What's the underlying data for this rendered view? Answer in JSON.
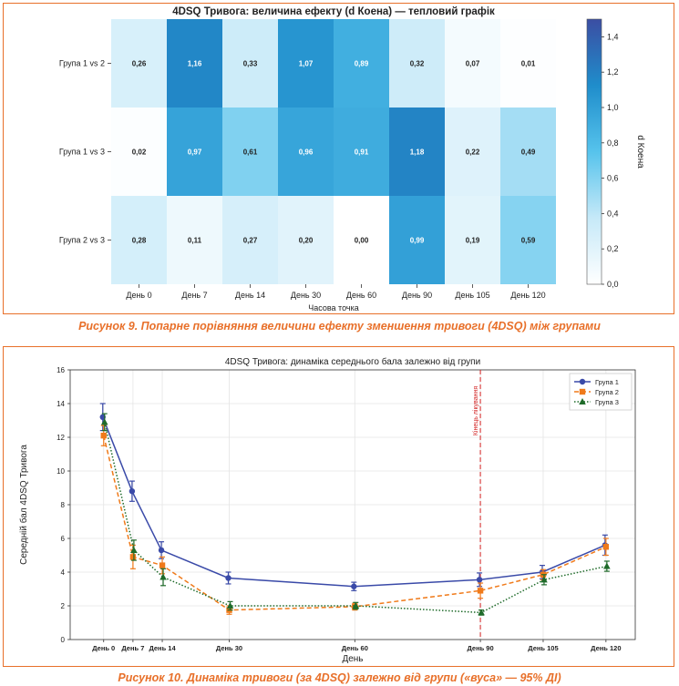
{
  "figure9": {
    "caption": "Рисунок 9. Попарне порівняння величини ефекту зменшення тривоги (4DSQ) між групами",
    "chart_data": {
      "type": "heatmap",
      "title": "4DSQ Тривога: величина ефекту (d Коена) — тепловий графік",
      "xlabel": "Часова точка",
      "ylabel": "",
      "colorbar_label": "d Коена",
      "colorbar_range": [
        0,
        1.5
      ],
      "colorbar_ticks": [
        "0,0",
        "0,2",
        "0,4",
        "0,6",
        "0,8",
        "1,0",
        "1,2",
        "1,4"
      ],
      "colormap": [
        "#ffffff",
        "#c6e9f8",
        "#56c3ec",
        "#1f8dcb",
        "#3b4ea3"
      ],
      "x_categories": [
        "День 0",
        "День 7",
        "День 14",
        "День 30",
        "День 60",
        "День 90",
        "День 105",
        "День 120"
      ],
      "y_categories": [
        "Група 1 vs 2",
        "Група 1 vs 3",
        "Група 2 vs 3"
      ],
      "values": [
        [
          0.26,
          1.16,
          0.33,
          1.07,
          0.89,
          0.32,
          0.07,
          0.01
        ],
        [
          0.02,
          0.97,
          0.61,
          0.96,
          0.91,
          1.18,
          0.22,
          0.49
        ],
        [
          0.28,
          0.11,
          0.27,
          0.2,
          0.0,
          0.99,
          0.19,
          0.59
        ]
      ],
      "labels": [
        [
          "0,26",
          "1,16",
          "0,33",
          "1,07",
          "0,89",
          "0,32",
          "0,07",
          "0,01"
        ],
        [
          "0,02",
          "0,97",
          "0,61",
          "0,96",
          "0,91",
          "1,18",
          "0,22",
          "0,49"
        ],
        [
          "0,28",
          "0,11",
          "0,27",
          "0,20",
          "0,00",
          "0,99",
          "0,19",
          "0,59"
        ]
      ]
    }
  },
  "figure10": {
    "caption": "Рисунок 10. Динаміка тривоги (за 4DSQ) залежно від групи («вуса» — 95% ДІ)",
    "chart_data": {
      "type": "line",
      "title": "4DSQ Тривога: динаміка середнього бала залежно від групи",
      "xlabel": "День",
      "ylabel": "Середній бал 4DSQ Тривога",
      "x": [
        0,
        7,
        14,
        30,
        60,
        90,
        105,
        120
      ],
      "x_tick_labels": [
        "День 0",
        "День 7",
        "День 14",
        "День 30",
        "День 60",
        "День 90",
        "День 105",
        "День 120"
      ],
      "ylim": [
        0,
        16
      ],
      "y_ticks": [
        0,
        2,
        4,
        6,
        8,
        10,
        12,
        14,
        16
      ],
      "grid": true,
      "legend_position": "top-right",
      "series": [
        {
          "name": "Група 1",
          "color": "#3a4aa8",
          "style": "solid",
          "marker": "circle",
          "values": [
            13.2,
            8.8,
            5.3,
            3.65,
            3.15,
            3.55,
            4.0,
            5.6
          ],
          "ci": [
            [
              12.4,
              14.0
            ],
            [
              8.2,
              9.4
            ],
            [
              4.8,
              5.8
            ],
            [
              3.3,
              4.0
            ],
            [
              2.9,
              3.4
            ],
            [
              3.15,
              3.95
            ],
            [
              3.6,
              4.4
            ],
            [
              5.0,
              6.2
            ]
          ]
        },
        {
          "name": "Група 2",
          "color": "#f07a1a",
          "style": "dashed",
          "marker": "square",
          "values": [
            12.1,
            4.9,
            4.4,
            1.75,
            1.95,
            2.9,
            3.85,
            5.5
          ],
          "ci": [
            [
              11.5,
              12.7
            ],
            [
              4.2,
              5.6
            ],
            [
              3.9,
              4.9
            ],
            [
              1.5,
              2.0
            ],
            [
              1.75,
              2.15
            ],
            [
              2.45,
              3.35
            ],
            [
              3.55,
              4.15
            ],
            [
              5.0,
              6.0
            ]
          ]
        },
        {
          "name": "Група 3",
          "color": "#1f6b2a",
          "style": "dotted",
          "marker": "triangle",
          "values": [
            12.9,
            5.3,
            3.7,
            2.0,
            2.0,
            1.6,
            3.55,
            4.35
          ],
          "ci": [
            [
              12.4,
              13.4
            ],
            [
              4.7,
              5.9
            ],
            [
              3.2,
              4.2
            ],
            [
              1.75,
              2.25
            ],
            [
              1.8,
              2.2
            ],
            [
              1.45,
              1.75
            ],
            [
              3.25,
              3.85
            ],
            [
              4.05,
              4.65
            ]
          ]
        }
      ],
      "annotations": [
        {
          "x": 90,
          "type": "vline",
          "color": "#d22020",
          "text": "Кінець лікування"
        }
      ]
    }
  }
}
